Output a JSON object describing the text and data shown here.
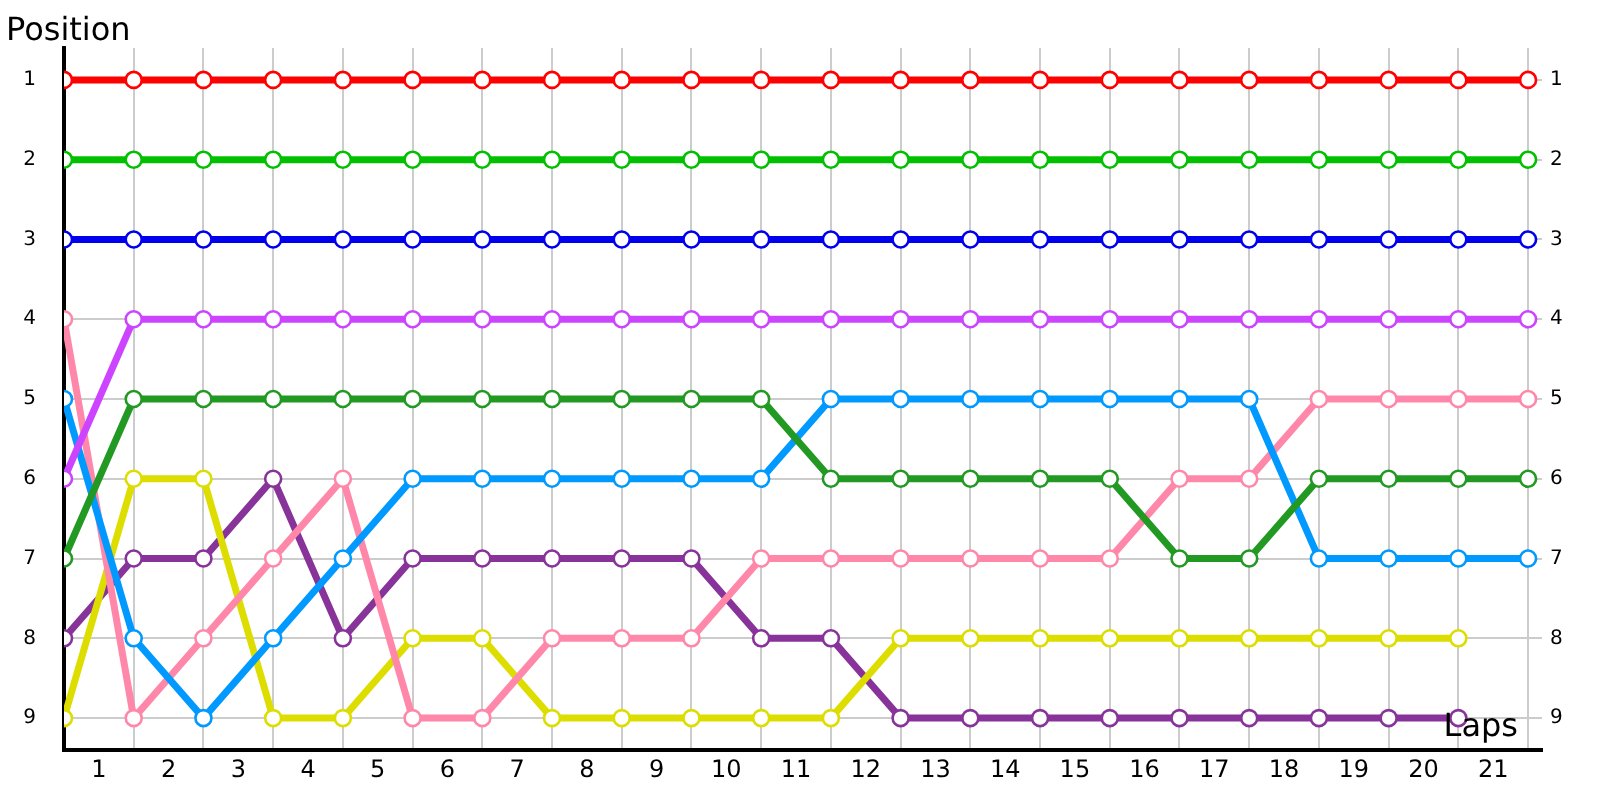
{
  "chart_data": {
    "type": "line",
    "xlabel": "Laps",
    "ylabel": "Position",
    "x": [
      0,
      1,
      2,
      3,
      4,
      5,
      6,
      7,
      8,
      9,
      10,
      11,
      12,
      13,
      14,
      15,
      16,
      17,
      18,
      19,
      20,
      21
    ],
    "series": [
      {
        "color": "#ff0000",
        "values": [
          1,
          1,
          1,
          1,
          1,
          1,
          1,
          1,
          1,
          1,
          1,
          1,
          1,
          1,
          1,
          1,
          1,
          1,
          1,
          1,
          1,
          1
        ]
      },
      {
        "color": "#00c000",
        "values": [
          2,
          2,
          2,
          2,
          2,
          2,
          2,
          2,
          2,
          2,
          2,
          2,
          2,
          2,
          2,
          2,
          2,
          2,
          2,
          2,
          2,
          2
        ]
      },
      {
        "color": "#0000ee",
        "values": [
          3,
          3,
          3,
          3,
          3,
          3,
          3,
          3,
          3,
          3,
          3,
          3,
          3,
          3,
          3,
          3,
          3,
          3,
          3,
          3,
          3,
          3
        ]
      },
      {
        "color": "#cc44ff",
        "values": [
          6,
          4,
          4,
          4,
          4,
          4,
          4,
          4,
          4,
          4,
          4,
          4,
          4,
          4,
          4,
          4,
          4,
          4,
          4,
          4,
          4,
          4
        ]
      },
      {
        "color": "#229922",
        "values": [
          7,
          5,
          5,
          5,
          5,
          5,
          5,
          5,
          5,
          5,
          5,
          6,
          6,
          6,
          6,
          6,
          7,
          7,
          6,
          6,
          6,
          6
        ]
      },
      {
        "color": "#0099ff",
        "values": [
          5,
          8,
          9,
          8,
          7,
          6,
          6,
          6,
          6,
          6,
          6,
          5,
          5,
          5,
          5,
          5,
          5,
          5,
          7,
          7,
          7,
          7
        ]
      },
      {
        "color": "#ff88aa",
        "values": [
          4,
          9,
          8,
          7,
          6,
          9,
          9,
          8,
          8,
          8,
          7,
          7,
          7,
          7,
          7,
          7,
          6,
          6,
          5,
          5,
          5,
          5
        ]
      },
      {
        "color": "#dddd00",
        "values": [
          9,
          6,
          6,
          9,
          9,
          8,
          8,
          9,
          9,
          9,
          9,
          9,
          8,
          8,
          8,
          8,
          8,
          8,
          8,
          8,
          8,
          null
        ]
      },
      {
        "color": "#883399",
        "values": [
          8,
          7,
          7,
          6,
          8,
          7,
          7,
          7,
          7,
          7,
          8,
          8,
          9,
          9,
          9,
          9,
          9,
          9,
          9,
          9,
          9,
          null
        ]
      }
    ],
    "xlim": [
      0,
      21.2
    ],
    "xticks": [
      {
        "value": 0,
        "label": null
      },
      {
        "value": 0.5,
        "label": "1"
      },
      {
        "value": 1,
        "label": null
      },
      {
        "value": 1.5,
        "label": "2"
      },
      {
        "value": 2,
        "label": null
      },
      {
        "value": 2.5,
        "label": "3"
      },
      {
        "value": 3,
        "label": null
      },
      {
        "value": 3.5,
        "label": "4"
      },
      {
        "value": 4,
        "label": null
      },
      {
        "value": 4.5,
        "label": "5"
      },
      {
        "value": 5,
        "label": null
      },
      {
        "value": 5.5,
        "label": "6"
      },
      {
        "value": 6,
        "label": null
      },
      {
        "value": 6.5,
        "label": "7"
      },
      {
        "value": 7,
        "label": null
      },
      {
        "value": 7.5,
        "label": "8"
      },
      {
        "value": 8,
        "label": null
      },
      {
        "value": 8.5,
        "label": "9"
      },
      {
        "value": 9,
        "label": null
      },
      {
        "value": 9.5,
        "label": "10"
      },
      {
        "value": 10,
        "label": null
      },
      {
        "value": 10.5,
        "label": "11"
      },
      {
        "value": 11,
        "label": null
      },
      {
        "value": 11.5,
        "label": "12"
      },
      {
        "value": 12,
        "label": null
      },
      {
        "value": 12.5,
        "label": "13"
      },
      {
        "value": 13,
        "label": null
      },
      {
        "value": 13.5,
        "label": "14"
      },
      {
        "value": 14,
        "label": null
      },
      {
        "value": 14.5,
        "label": "15"
      },
      {
        "value": 15,
        "label": null
      },
      {
        "value": 15.5,
        "label": "16"
      },
      {
        "value": 16,
        "label": null
      },
      {
        "value": 16.5,
        "label": "17"
      },
      {
        "value": 17,
        "label": null
      },
      {
        "value": 17.5,
        "label": "18"
      },
      {
        "value": 18,
        "label": null
      },
      {
        "value": 18.5,
        "label": "19"
      },
      {
        "value": 19,
        "label": null
      },
      {
        "value": 19.5,
        "label": "20"
      },
      {
        "value": 20,
        "label": null
      },
      {
        "value": 20.5,
        "label": "21"
      },
      {
        "value": 21,
        "label": null
      }
    ],
    "ylim": [
      9.4,
      0.6
    ],
    "yticks": [
      1,
      2,
      3,
      4,
      5,
      6,
      7,
      8,
      9
    ],
    "y2lim": [
      9.4,
      0.6
    ],
    "y2ticks": [
      1,
      2,
      3,
      4,
      5,
      6,
      7,
      8,
      9
    ],
    "grid": true,
    "legend": false,
    "marker": "circle",
    "line_style": "solid"
  }
}
